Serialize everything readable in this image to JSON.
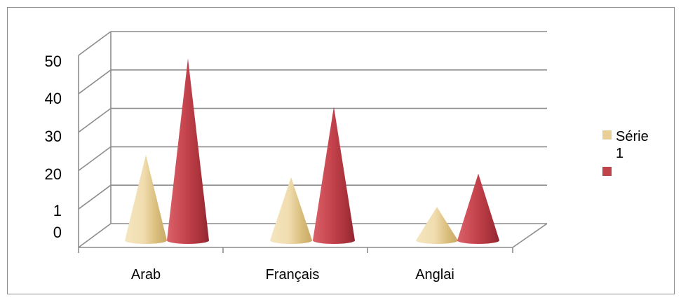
{
  "chart_data": {
    "type": "bar",
    "bar_shape": "cone",
    "style": "3d",
    "categories": [
      "Arab",
      "Français",
      "Anglai"
    ],
    "series": [
      {
        "name": "Série 1",
        "values": [
          23,
          17,
          9
        ],
        "color": "#e8cf95"
      },
      {
        "values": [
          49,
          36,
          18
        ],
        "color": "#c0424a"
      }
    ],
    "y_ticks": [
      "50",
      "40",
      "30",
      "20",
      "1",
      "0"
    ],
    "ylim": [
      0,
      50
    ],
    "grid": true,
    "legend": {
      "position": "right",
      "entries": [
        "Série",
        "1",
        ""
      ]
    }
  }
}
